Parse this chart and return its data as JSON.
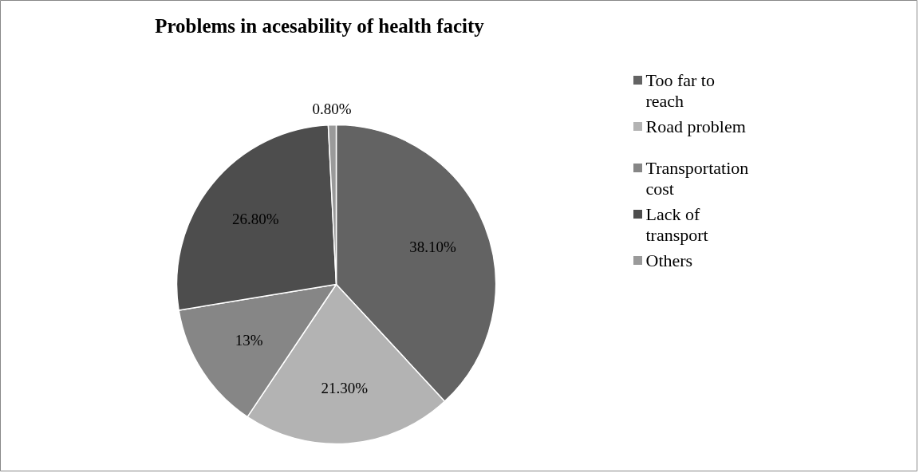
{
  "chart_data": {
    "type": "pie",
    "title": "Problems in acesability of health facity",
    "categories": [
      "Too far to reach",
      "Road problem",
      "Transportation cost",
      "Lack of transport",
      "Others"
    ],
    "values": [
      38.1,
      21.3,
      13,
      26.8,
      0.8
    ],
    "value_labels": [
      "38.10%",
      "21.30%",
      "13%",
      "26.80%",
      "0.80%"
    ],
    "colors": [
      "#636363",
      "#b3b3b3",
      "#868686",
      "#4d4d4d",
      "#9a9a9a"
    ],
    "legend": "right"
  }
}
